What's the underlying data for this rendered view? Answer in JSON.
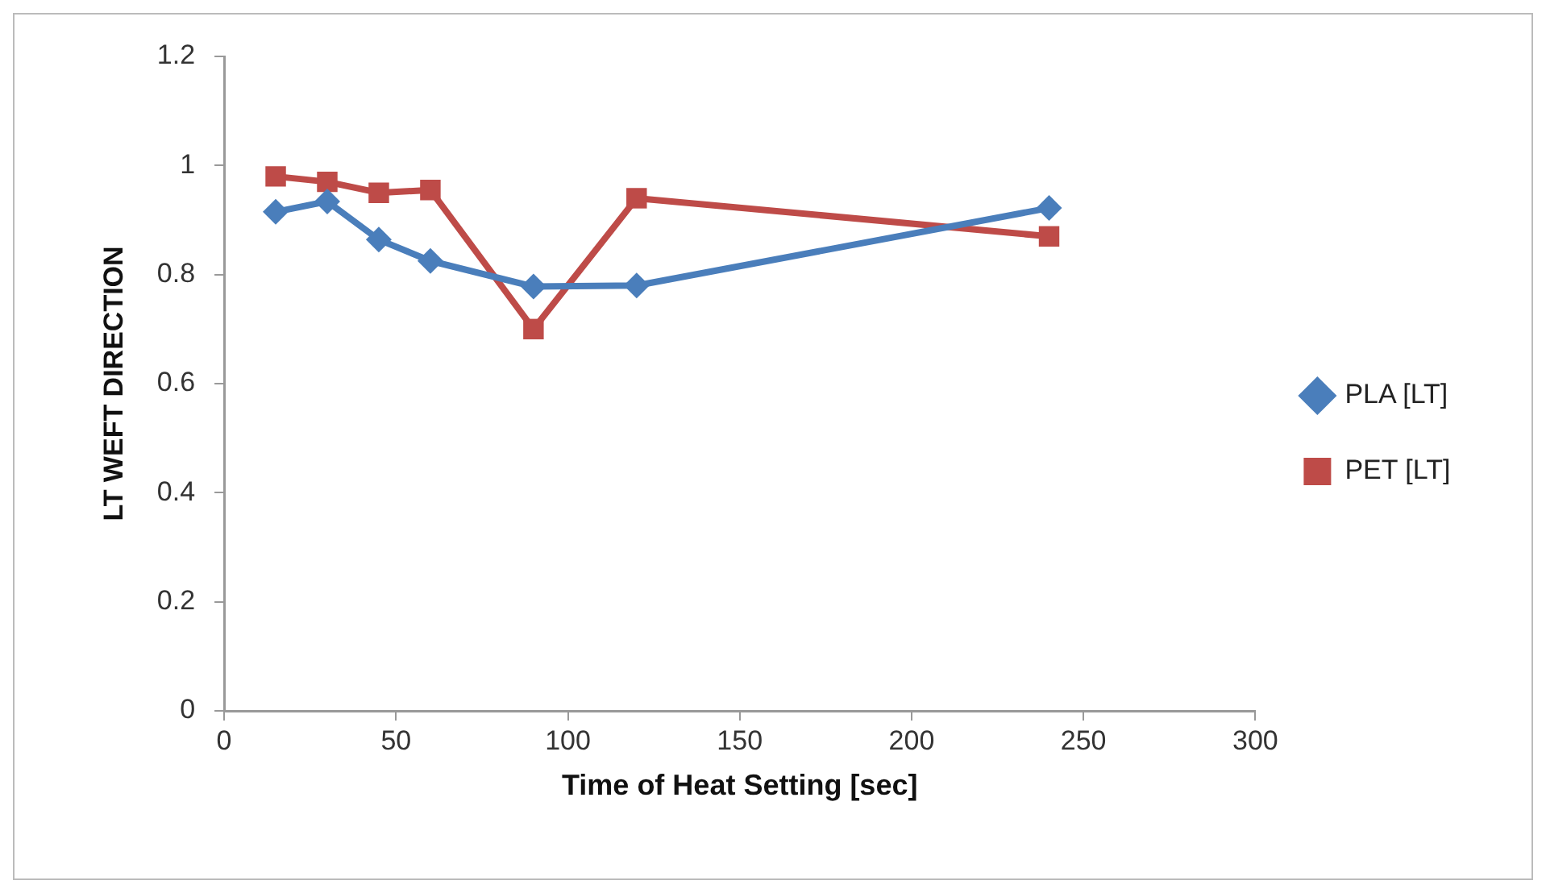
{
  "chart_data": {
    "type": "line",
    "xlabel": "Time of Heat Setting [sec]",
    "ylabel": "LT WEFT DIRECTION",
    "x": [
      15,
      30,
      45,
      60,
      90,
      120,
      240
    ],
    "series": [
      {
        "name": "PLA [LT]",
        "color": "#4a7ebb",
        "marker": "diamond",
        "values": [
          0.915,
          0.934,
          0.864,
          0.825,
          0.778,
          0.78,
          0.922
        ]
      },
      {
        "name": "PET [LT]",
        "color": "#be4b48",
        "marker": "square",
        "values": [
          0.98,
          0.97,
          0.95,
          0.955,
          0.7,
          0.94,
          0.87
        ]
      }
    ],
    "xlim": [
      0,
      300
    ],
    "xticks": [
      0,
      50,
      100,
      150,
      200,
      250,
      300
    ],
    "ylim": [
      0,
      1.2
    ],
    "yticks": [
      0,
      0.2,
      0.4,
      0.6,
      0.8,
      1,
      1.2
    ],
    "grid": false,
    "legend": "right",
    "line_style": "solid"
  }
}
